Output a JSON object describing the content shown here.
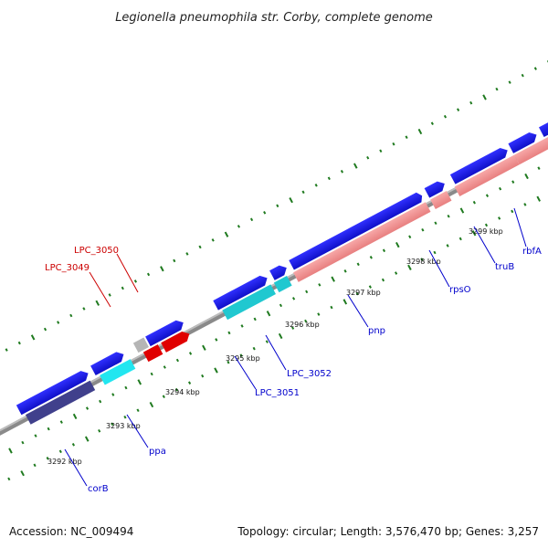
{
  "title": "Legionella pneumophila str. Corby, complete genome",
  "footer": {
    "accession": "Accession: NC_009494",
    "summary": "Topology: circular; Length: 3,576,470 bp; Genes: 3,257"
  },
  "scale_labels": [
    "3292 kbp",
    "3293 kbp",
    "3294 kbp",
    "3295 kbp",
    "3296 kbp",
    "3297 kbp",
    "3298 kbp",
    "3299 kbp"
  ],
  "genes": {
    "lpc3050": "LPC_3050",
    "lpc3049": "LPC_3049",
    "lpc3052": "LPC_3052",
    "lpc3051": "LPC_3051",
    "ppa": "ppa",
    "corB": "corB",
    "pnp": "pnp",
    "rpsO": "rpsO",
    "truB": "truB",
    "rbfA": "rbfA"
  },
  "colors": {
    "backbone": "#8a8a8a",
    "gene_forward": "#1a1ae6",
    "gene_rna_pink": "#f08c8c",
    "gene_cyan": "#20d0d8",
    "gene_red": "#e00000",
    "gene_navy": "#40408c",
    "tick": "#1f7a1f",
    "label_blue": "#0000cc",
    "label_red": "#cc0000"
  }
}
